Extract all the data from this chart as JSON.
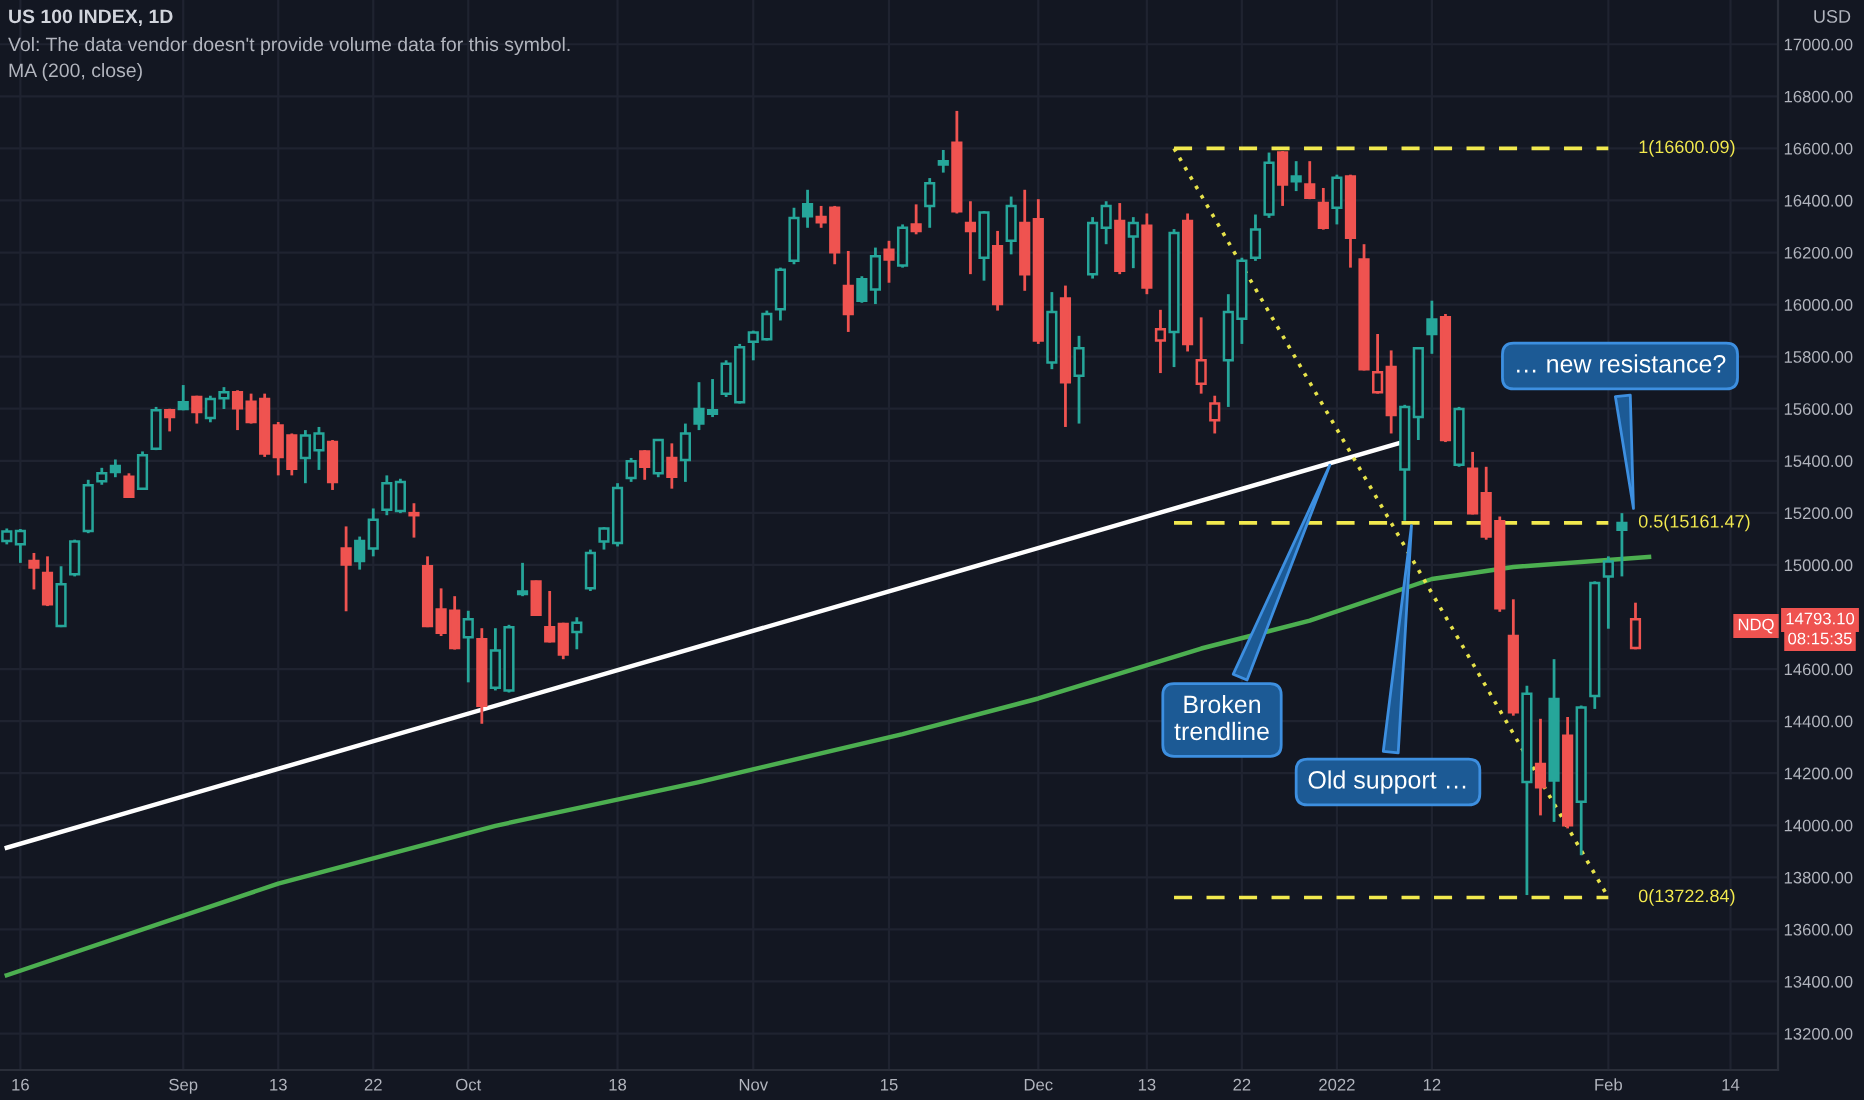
{
  "chart_data": {
    "type": "candlestick",
    "title": "US 100 INDEX, 1D",
    "subtitle": "Vol: The data vendor doesn't provide volume data for this symbol.",
    "ylabel": "USD",
    "annotations": [
      "MA (200, close)",
      "Broken\ntrendline",
      "Old support …",
      "… new resistance?",
      "NDQ",
      "14793.10",
      "08:15:35"
    ],
    "categories": [
      null,
      "16",
      null,
      null,
      null,
      null,
      null,
      null,
      null,
      null,
      null,
      null,
      null,
      "Sep",
      null,
      null,
      null,
      null,
      null,
      null,
      "13",
      null,
      null,
      null,
      null,
      null,
      null,
      "22",
      null,
      null,
      null,
      null,
      null,
      null,
      "Oct",
      null,
      null,
      null,
      null,
      null,
      null,
      null,
      null,
      null,
      null,
      "18",
      null,
      null,
      null,
      null,
      null,
      null,
      null,
      null,
      null,
      "Nov",
      null,
      null,
      null,
      null,
      null,
      null,
      null,
      null,
      null,
      "15",
      null,
      null,
      null,
      null,
      null,
      null,
      null,
      null,
      null,
      null,
      "Dec",
      null,
      null,
      null,
      null,
      null,
      null,
      null,
      "13",
      null,
      null,
      null,
      null,
      null,
      null,
      "22",
      null,
      null,
      null,
      null,
      null,
      null,
      "2022",
      null,
      null,
      null,
      null,
      null,
      null,
      "12",
      null,
      null,
      null,
      null,
      null,
      null,
      null,
      null,
      null,
      null,
      null,
      null,
      "Feb",
      null,
      null,
      null,
      null,
      null,
      null,
      null,
      null,
      "14",
      null,
      null,
      null
    ],
    "ohlc": [
      [
        15092,
        15140,
        15079,
        15128
      ],
      [
        15079,
        15138,
        15008,
        15130
      ],
      [
        15015,
        15046,
        14906,
        14990
      ],
      [
        14969,
        15033,
        14842,
        14849
      ],
      [
        14765,
        14995,
        14761,
        14926
      ],
      [
        14964,
        15097,
        14956,
        15090
      ],
      [
        15130,
        15327,
        15122,
        15306
      ],
      [
        15321,
        15373,
        15308,
        15352
      ],
      [
        15380,
        15405,
        15337,
        15357
      ],
      [
        15339,
        15352,
        15258,
        15262
      ],
      [
        15293,
        15436,
        15288,
        15421
      ],
      [
        15446,
        15607,
        15441,
        15594
      ],
      [
        15594,
        15600,
        15513,
        15568
      ],
      [
        15625,
        15691,
        15594,
        15599
      ],
      [
        15645,
        15650,
        15543,
        15587
      ],
      [
        15564,
        15650,
        15548,
        15637
      ],
      [
        15640,
        15683,
        15599,
        15663
      ],
      [
        15663,
        15671,
        15518,
        15602
      ],
      [
        15627,
        15658,
        15543,
        15549
      ],
      [
        15637,
        15658,
        15415,
        15428
      ],
      [
        15536,
        15549,
        15344,
        15415
      ],
      [
        15497,
        15505,
        15344,
        15369
      ],
      [
        15411,
        15518,
        15314,
        15497
      ],
      [
        15441,
        15530,
        15365,
        15505
      ],
      [
        15472,
        15480,
        15288,
        15319
      ],
      [
        15063,
        15148,
        14822,
        15002
      ],
      [
        15092,
        15109,
        14982,
        15015
      ],
      [
        15063,
        15217,
        15033,
        15174
      ],
      [
        15212,
        15344,
        15191,
        15314
      ],
      [
        15207,
        15331,
        15199,
        15319
      ],
      [
        15199,
        15237,
        15105,
        15191
      ],
      [
        14995,
        15033,
        14761,
        14765
      ],
      [
        14829,
        14910,
        14727,
        14740
      ],
      [
        14824,
        14880,
        14675,
        14681
      ],
      [
        14722,
        14824,
        14549,
        14791
      ],
      [
        14715,
        14757,
        14390,
        14459
      ],
      [
        14528,
        14757,
        14518,
        14671
      ],
      [
        14518,
        14770,
        14510,
        14761
      ],
      [
        14898,
        15008,
        14880,
        14888
      ],
      [
        14936,
        14940,
        14805,
        14809
      ],
      [
        14761,
        14900,
        14702,
        14707
      ],
      [
        14773,
        14778,
        14638,
        14656
      ],
      [
        14742,
        14799,
        14676,
        14778
      ],
      [
        14910,
        15059,
        14900,
        15046
      ],
      [
        15090,
        15145,
        15059,
        15140
      ],
      [
        15084,
        15314,
        15071,
        15296
      ],
      [
        15334,
        15411,
        15319,
        15398
      ],
      [
        15436,
        15441,
        15327,
        15377
      ],
      [
        15352,
        15482,
        15337,
        15480
      ],
      [
        15411,
        15467,
        15293,
        15339
      ],
      [
        15403,
        15543,
        15319,
        15505
      ],
      [
        15599,
        15702,
        15518,
        15543
      ],
      [
        15594,
        15714,
        15568,
        15581
      ],
      [
        15658,
        15786,
        15645,
        15773
      ],
      [
        15625,
        15849,
        15620,
        15836
      ],
      [
        15857,
        15900,
        15786,
        15893
      ],
      [
        15867,
        15977,
        15862,
        15964
      ],
      [
        15982,
        16142,
        15939,
        16134
      ],
      [
        16168,
        16372,
        16155,
        16333
      ],
      [
        16385,
        16441,
        16295,
        16339
      ],
      [
        16336,
        16379,
        16295,
        16316
      ],
      [
        16372,
        16379,
        16155,
        16201
      ],
      [
        16071,
        16206,
        15895,
        15964
      ],
      [
        16097,
        16109,
        16007,
        16015
      ],
      [
        16058,
        16219,
        16002,
        16186
      ],
      [
        16211,
        16245,
        16084,
        16173
      ],
      [
        16150,
        16308,
        16142,
        16295
      ],
      [
        16308,
        16385,
        16270,
        16283
      ],
      [
        16379,
        16486,
        16295,
        16466
      ],
      [
        16551,
        16594,
        16507,
        16538
      ],
      [
        16622,
        16744,
        16350,
        16359
      ],
      [
        16313,
        16397,
        16117,
        16283
      ],
      [
        16180,
        16359,
        16092,
        16354
      ],
      [
        16224,
        16283,
        15977,
        16002
      ],
      [
        16245,
        16415,
        16193,
        16379
      ],
      [
        16313,
        16441,
        16053,
        16117
      ],
      [
        16328,
        16405,
        15849,
        15862
      ],
      [
        15778,
        16048,
        15752,
        15972
      ],
      [
        16023,
        16073,
        15530,
        15702
      ],
      [
        15727,
        15880,
        15543,
        15832
      ],
      [
        16117,
        16336,
        16100,
        16313
      ],
      [
        16295,
        16397,
        16232,
        16379
      ],
      [
        16321,
        16390,
        16117,
        16130
      ],
      [
        16262,
        16336,
        16140,
        16313
      ],
      [
        16303,
        16350,
        16040,
        16066
      ],
      [
        15862,
        15980,
        15737,
        15905
      ],
      [
        15895,
        16290,
        15760,
        16275
      ],
      [
        16321,
        16350,
        15820,
        15849
      ],
      [
        15696,
        15951,
        15658,
        15786
      ],
      [
        15556,
        15650,
        15505,
        15620
      ],
      [
        15786,
        16040,
        15607,
        15972
      ],
      [
        15946,
        16180,
        15849,
        16168
      ],
      [
        16180,
        16346,
        16168,
        16288
      ],
      [
        16346,
        16584,
        16333,
        16545
      ],
      [
        16584,
        16590,
        16379,
        16461
      ],
      [
        16492,
        16551,
        16436,
        16474
      ],
      [
        16461,
        16551,
        16405,
        16410
      ],
      [
        16390,
        16448,
        16288,
        16295
      ],
      [
        16372,
        16499,
        16308,
        16487
      ],
      [
        16492,
        16499,
        16142,
        16257
      ],
      [
        16173,
        16232,
        15747,
        15752
      ],
      [
        15663,
        15887,
        15658,
        15740
      ],
      [
        15760,
        15824,
        15505,
        15576
      ],
      [
        15367,
        15615,
        15170,
        15607
      ],
      [
        15568,
        15836,
        15480,
        15832
      ],
      [
        15943,
        16015,
        15811,
        15887
      ],
      [
        15951,
        15964,
        15472,
        15480
      ],
      [
        15385,
        15607,
        15377,
        15599
      ],
      [
        15369,
        15434,
        15194,
        15199
      ],
      [
        15275,
        15377,
        15097,
        15109
      ],
      [
        15168,
        15186,
        14820,
        14834
      ],
      [
        14727,
        14868,
        14421,
        14434
      ],
      [
        14166,
        14536,
        13732,
        14505
      ],
      [
        14235,
        14409,
        14038,
        14146
      ],
      [
        14485,
        14638,
        14013,
        14172
      ],
      [
        14344,
        14416,
        13988,
        14000
      ],
      [
        14090,
        14460,
        13885,
        14452
      ],
      [
        14497,
        14937,
        14447,
        14931
      ],
      [
        14956,
        15033,
        14755,
        15013
      ],
      [
        15161,
        15199,
        14956,
        15135
      ],
      [
        14681,
        14855,
        14676,
        14791
      ],
      null,
      null,
      null,
      null,
      null,
      null,
      null,
      null,
      null,
      null
    ],
    "colors": [
      "#26a69a",
      "#26a69a",
      "#ef5350",
      "#ef5350",
      "#26a69a",
      "#26a69a",
      "#26a69a",
      "#26a69a",
      "#26a69a",
      "#ef5350",
      "#26a69a",
      "#26a69a",
      "#ef5350",
      "#26a69a",
      "#ef5350",
      "#26a69a",
      "#26a69a",
      "#ef5350",
      "#ef5350",
      "#ef5350",
      "#ef5350",
      "#ef5350",
      "#26a69a",
      "#26a69a",
      "#ef5350",
      "#ef5350",
      "#26a69a",
      "#26a69a",
      "#26a69a",
      "#26a69a",
      "#ef5350",
      "#ef5350",
      "#ef5350",
      "#ef5350",
      "#26a69a",
      "#ef5350",
      "#26a69a",
      "#26a69a",
      "#26a69a",
      "#ef5350",
      "#ef5350",
      "#ef5350",
      "#26a69a",
      "#26a69a",
      "#26a69a",
      "#26a69a",
      "#26a69a",
      "#ef5350",
      "#26a69a",
      "#ef5350",
      "#26a69a",
      "#26a69a",
      "#26a69a",
      "#26a69a",
      "#26a69a",
      "#26a69a",
      "#26a69a",
      "#26a69a",
      "#26a69a",
      "#26a69a",
      "#ef5350",
      "#ef5350",
      "#ef5350",
      "#26a69a",
      "#26a69a",
      "#ef5350",
      "#26a69a",
      "#ef5350",
      "#26a69a",
      "#26a69a",
      "#ef5350",
      "#ef5350",
      "#26a69a",
      "#ef5350",
      "#26a69a",
      "#ef5350",
      "#ef5350",
      "#26a69a",
      "#ef5350",
      "#26a69a",
      "#26a69a",
      "#26a69a",
      "#ef5350",
      "#26a69a",
      "#ef5350",
      "#ef5350",
      "#26a69a",
      "#ef5350",
      "#ef5350",
      "#ef5350",
      "#26a69a",
      "#26a69a",
      "#26a69a",
      "#26a69a",
      "#ef5350",
      "#26a69a",
      "#ef5350",
      "#ef5350",
      "#26a69a",
      "#ef5350",
      "#ef5350",
      "#ef5350",
      "#ef5350",
      "#26a69a",
      "#26a69a",
      "#26a69a",
      "#ef5350",
      "#26a69a",
      "#ef5350",
      "#ef5350",
      "#ef5350",
      "#ef5350",
      "#26a69a",
      "#ef5350",
      "#26a69a",
      "#ef5350",
      "#26a69a",
      "#26a69a",
      "#26a69a",
      "#26a69a",
      "#ef5350",
      null,
      null,
      null,
      null,
      null,
      null,
      null,
      null,
      null,
      null
    ],
    "series": [
      {
        "type": "line",
        "color": "#4caf50",
        "line_style": "solid",
        "values": [
          13424,
          null,
          null,
          null,
          null,
          null,
          null,
          null,
          null,
          null,
          null,
          null,
          null,
          null,
          null,
          null,
          null,
          null,
          null,
          null,
          13776,
          null,
          null,
          null,
          null,
          null,
          null,
          null,
          null,
          null,
          null,
          null,
          null,
          null,
          null,
          null,
          13998,
          null,
          null,
          null,
          null,
          null,
          null,
          null,
          null,
          null,
          null,
          null,
          null,
          null,
          null,
          14166,
          null,
          null,
          null,
          null,
          null,
          null,
          null,
          null,
          null,
          null,
          null,
          null,
          null,
          null,
          14350,
          null,
          null,
          null,
          null,
          null,
          null,
          null,
          null,
          null,
          14487,
          null,
          null,
          null,
          null,
          null,
          null,
          null,
          null,
          null,
          null,
          null,
          14679,
          null,
          null,
          null,
          null,
          null,
          null,
          null,
          14786,
          null,
          null,
          null,
          null,
          null,
          null,
          null,
          null,
          14946,
          null,
          null,
          null,
          null,
          null,
          14992,
          null,
          null,
          null,
          null,
          null,
          null,
          null,
          null,
          null,
          15031,
          null,
          null,
          null,
          null,
          null,
          null,
          null,
          null,
          null
        ]
      },
      {
        "type": "line",
        "color": "#ffffff",
        "line_style": "solid",
        "values": [
          13914,
          null,
          null,
          null,
          null,
          null,
          null,
          null,
          null,
          null,
          null,
          null,
          null,
          null,
          null,
          null,
          null,
          null,
          null,
          null,
          null,
          null,
          null,
          null,
          null,
          null,
          null,
          null,
          null,
          null,
          null,
          null,
          null,
          null,
          null,
          null,
          null,
          null,
          null,
          null,
          null,
          null,
          null,
          null,
          null,
          null,
          null,
          null,
          null,
          null,
          null,
          null,
          null,
          null,
          null,
          null,
          null,
          null,
          null,
          null,
          null,
          null,
          null,
          null,
          null,
          null,
          null,
          null,
          null,
          null,
          null,
          null,
          null,
          null,
          null,
          null,
          null,
          null,
          null,
          null,
          null,
          null,
          null,
          null,
          null,
          null,
          null,
          null,
          null,
          null,
          null,
          null,
          null,
          null,
          null,
          null,
          null,
          null,
          null,
          null,
          null,
          null,
          null,
          15474,
          null,
          null,
          null,
          null,
          null,
          null,
          null,
          null,
          null,
          null,
          null,
          null,
          null,
          null,
          null,
          null,
          null,
          null,
          null,
          null,
          null,
          null,
          null,
          null,
          null,
          null,
          null
        ]
      },
      {
        "type": "line",
        "color": "#e6e24a",
        "line_style": "dotted",
        "values": [
          null,
          null,
          null,
          null,
          null,
          null,
          null,
          null,
          null,
          null,
          null,
          null,
          null,
          null,
          null,
          null,
          null,
          null,
          null,
          null,
          null,
          null,
          null,
          null,
          null,
          null,
          null,
          null,
          null,
          null,
          null,
          null,
          null,
          null,
          null,
          null,
          null,
          null,
          null,
          null,
          null,
          null,
          null,
          null,
          null,
          null,
          null,
          null,
          null,
          null,
          null,
          null,
          null,
          null,
          null,
          null,
          null,
          null,
          null,
          null,
          null,
          null,
          null,
          null,
          null,
          null,
          null,
          null,
          null,
          null,
          null,
          null,
          null,
          null,
          null,
          null,
          null,
          null,
          null,
          null,
          null,
          null,
          null,
          null,
          null,
          null,
          16600.09,
          null,
          null,
          null,
          null,
          null,
          null,
          null,
          null,
          null,
          null,
          null,
          null,
          null,
          null,
          null,
          null,
          null,
          null,
          null,
          null,
          null,
          null,
          null,
          null,
          null,
          null,
          null,
          null,
          null,
          null,
          null,
          13722.84,
          null,
          null,
          null,
          null,
          null,
          null,
          null,
          null,
          null,
          null,
          null,
          null
        ]
      },
      {
        "type": "line",
        "name": "1(16600.09)",
        "color": "#f2e94e",
        "line_style": "dashed",
        "values": [
          null,
          null,
          null,
          null,
          null,
          null,
          null,
          null,
          null,
          null,
          null,
          null,
          null,
          null,
          null,
          null,
          null,
          null,
          null,
          null,
          null,
          null,
          null,
          null,
          null,
          null,
          null,
          null,
          null,
          null,
          null,
          null,
          null,
          null,
          null,
          null,
          null,
          null,
          null,
          null,
          null,
          null,
          null,
          null,
          null,
          null,
          null,
          null,
          null,
          null,
          null,
          null,
          null,
          null,
          null,
          null,
          null,
          null,
          null,
          null,
          null,
          null,
          null,
          null,
          null,
          null,
          null,
          null,
          null,
          null,
          null,
          null,
          null,
          null,
          null,
          null,
          null,
          null,
          null,
          null,
          null,
          null,
          null,
          null,
          null,
          null,
          16600.09,
          null,
          null,
          null,
          null,
          null,
          null,
          null,
          null,
          null,
          null,
          null,
          null,
          null,
          null,
          null,
          null,
          null,
          null,
          null,
          null,
          null,
          null,
          null,
          null,
          null,
          null,
          null,
          null,
          null,
          null,
          null,
          16600.09,
          null,
          null,
          null,
          null,
          null,
          null,
          null,
          null,
          null,
          null,
          null,
          null
        ]
      },
      {
        "type": "line",
        "name": "0.5(15161.47)",
        "color": "#f2e94e",
        "line_style": "dashed",
        "values": [
          null,
          null,
          null,
          null,
          null,
          null,
          null,
          null,
          null,
          null,
          null,
          null,
          null,
          null,
          null,
          null,
          null,
          null,
          null,
          null,
          null,
          null,
          null,
          null,
          null,
          null,
          null,
          null,
          null,
          null,
          null,
          null,
          null,
          null,
          null,
          null,
          null,
          null,
          null,
          null,
          null,
          null,
          null,
          null,
          null,
          null,
          null,
          null,
          null,
          null,
          null,
          null,
          null,
          null,
          null,
          null,
          null,
          null,
          null,
          null,
          null,
          null,
          null,
          null,
          null,
          null,
          null,
          null,
          null,
          null,
          null,
          null,
          null,
          null,
          null,
          null,
          null,
          null,
          null,
          null,
          null,
          null,
          null,
          null,
          null,
          null,
          15161.47,
          null,
          null,
          null,
          null,
          null,
          null,
          null,
          null,
          null,
          null,
          null,
          null,
          null,
          null,
          null,
          null,
          null,
          null,
          null,
          null,
          null,
          null,
          null,
          null,
          null,
          null,
          null,
          null,
          null,
          null,
          null,
          15161.47,
          null,
          null,
          null,
          null,
          null,
          null,
          null,
          null,
          null,
          null,
          null,
          null
        ]
      },
      {
        "type": "line",
        "name": "0(13722.84)",
        "color": "#f2e94e",
        "line_style": "dashed",
        "values": [
          null,
          null,
          null,
          null,
          null,
          null,
          null,
          null,
          null,
          null,
          null,
          null,
          null,
          null,
          null,
          null,
          null,
          null,
          null,
          null,
          null,
          null,
          null,
          null,
          null,
          null,
          null,
          null,
          null,
          null,
          null,
          null,
          null,
          null,
          null,
          null,
          null,
          null,
          null,
          null,
          null,
          null,
          null,
          null,
          null,
          null,
          null,
          null,
          null,
          null,
          null,
          null,
          null,
          null,
          null,
          null,
          null,
          null,
          null,
          null,
          null,
          null,
          null,
          null,
          null,
          null,
          null,
          null,
          null,
          null,
          null,
          null,
          null,
          null,
          null,
          null,
          null,
          null,
          null,
          null,
          null,
          null,
          null,
          null,
          null,
          null,
          13722.84,
          null,
          null,
          null,
          null,
          null,
          null,
          null,
          null,
          null,
          null,
          null,
          null,
          null,
          null,
          null,
          null,
          null,
          null,
          null,
          null,
          null,
          null,
          null,
          null,
          null,
          null,
          null,
          null,
          null,
          null,
          null,
          13722.84,
          null,
          null,
          null,
          null,
          null,
          null,
          null,
          null,
          null,
          null,
          null,
          null
        ]
      }
    ],
    "ylim": [
      13060,
      17170
    ],
    "yticks": [
      {
        "value": 13200,
        "label": "13200.00"
      },
      {
        "value": 13400,
        "label": "13400.00"
      },
      {
        "value": 13600,
        "label": "13600.00"
      },
      {
        "value": 13800,
        "label": "13800.00"
      },
      {
        "value": 14000,
        "label": "14000.00"
      },
      {
        "value": 14200,
        "label": "14200.00"
      },
      {
        "value": 14400,
        "label": "14400.00"
      },
      {
        "value": 14600,
        "label": "14600.00"
      },
      {
        "value": 15000,
        "label": "15000.00"
      },
      {
        "value": 15200,
        "label": "15200.00"
      },
      {
        "value": 15400,
        "label": "15400.00"
      },
      {
        "value": 15600,
        "label": "15600.00"
      },
      {
        "value": 15800,
        "label": "15800.00"
      },
      {
        "value": 16000,
        "label": "16000.00"
      },
      {
        "value": 16200,
        "label": "16200.00"
      },
      {
        "value": 16400,
        "label": "16400.00"
      },
      {
        "value": 16600,
        "label": "16600.00"
      },
      {
        "value": 16800,
        "label": "16800.00"
      },
      {
        "value": 17000,
        "label": "17000.00"
      }
    ],
    "grid": true,
    "marker": "none"
  }
}
